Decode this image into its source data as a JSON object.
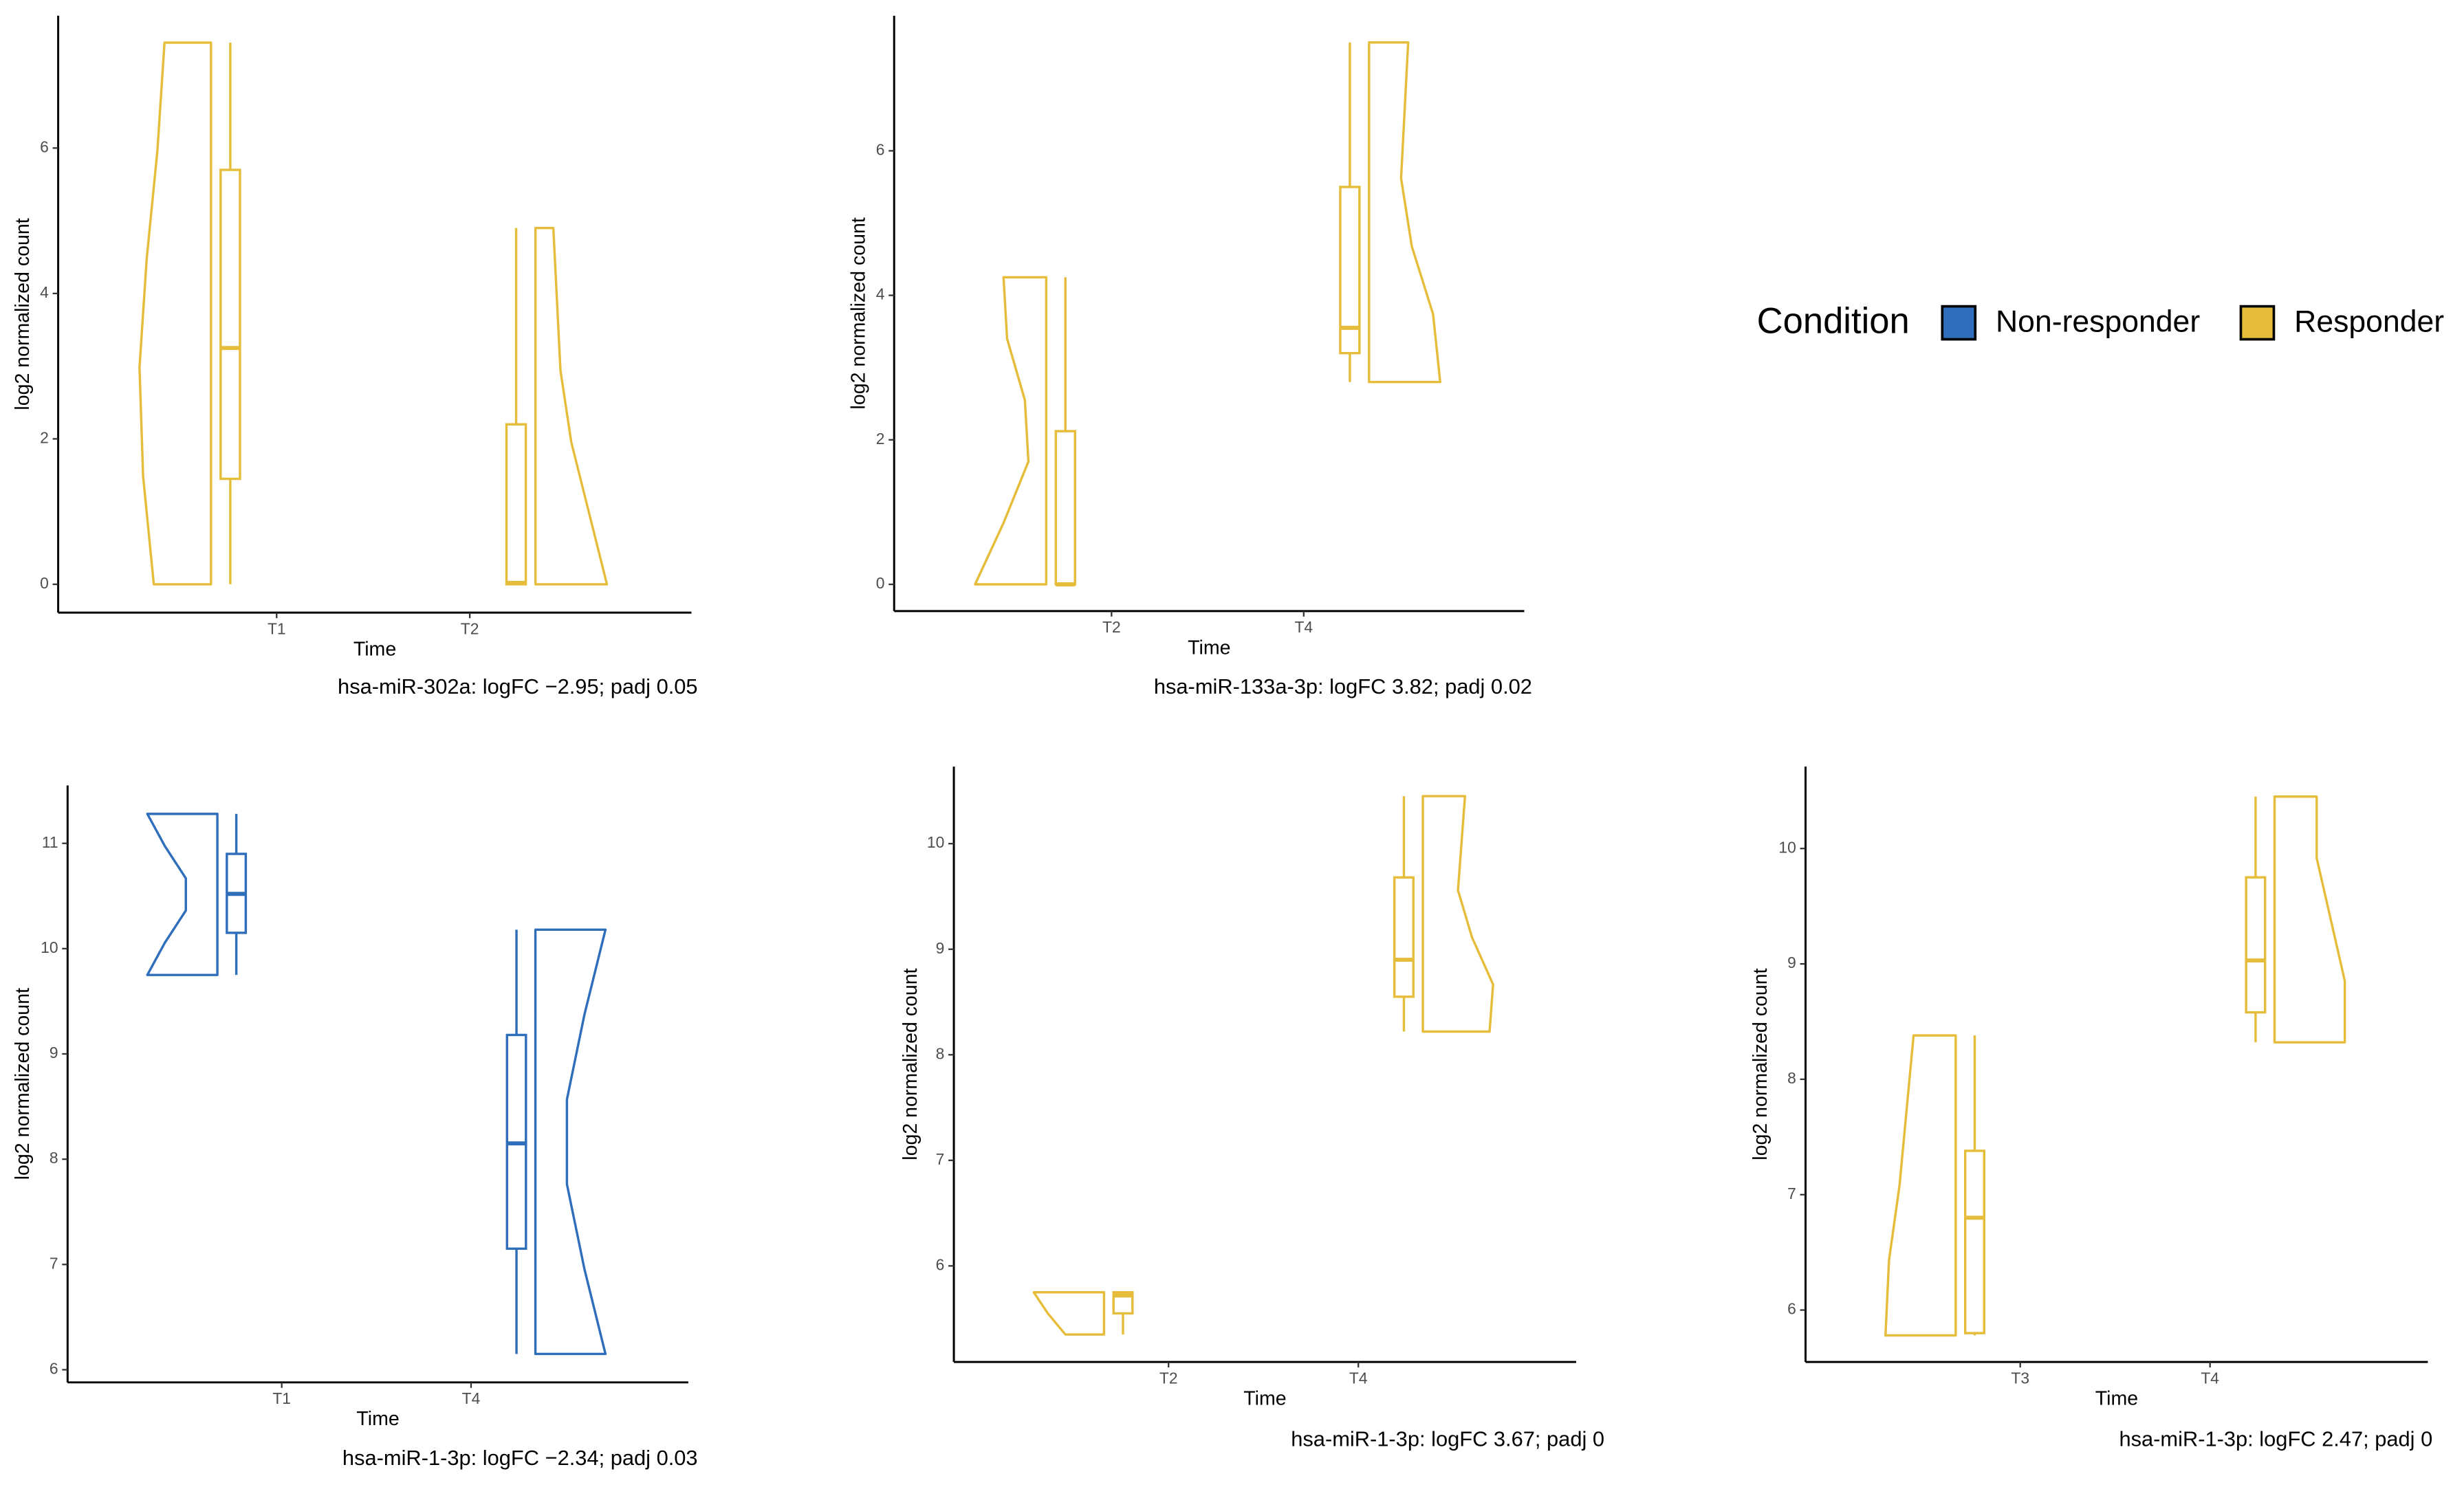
{
  "chart_data": [
    {
      "type": "violin-box",
      "caption": "hsa-miR-302a: logFC −2.95; padj 0.05",
      "xlabel": "Time",
      "ylabel": "log2 normalized count",
      "color": "#E5BD3B",
      "categories": [
        "T1",
        "T2"
      ],
      "ylim": [
        -0.39,
        7.82
      ],
      "yticks": [
        0,
        2,
        4,
        6
      ],
      "boxes": [
        {
          "min": 0,
          "q1": 1.45,
          "median": 3.25,
          "q3": 5.7,
          "max": 7.45,
          "density": [
            0.8,
            0.95,
            1.0,
            0.9,
            0.75,
            0.65
          ]
        },
        {
          "min": 0,
          "q1": 0,
          "median": 0.02,
          "q3": 2.2,
          "max": 4.9,
          "density": [
            1.0,
            0.75,
            0.5,
            0.35,
            0.3,
            0.25
          ]
        }
      ]
    },
    {
      "type": "violin-box",
      "caption": "hsa-miR-133a-3p: logFC 3.82; padj 0.02",
      "xlabel": "Time",
      "ylabel": "log2 normalized count",
      "color": "#E5BD3B",
      "categories": [
        "T2",
        "T4"
      ],
      "ylim": [
        -0.37,
        7.87
      ],
      "yticks": [
        0,
        2,
        4,
        6
      ],
      "boxes": [
        {
          "min": 0,
          "q1": 0,
          "median": 0,
          "q3": 2.12,
          "max": 4.25,
          "density": [
            1.0,
            0.6,
            0.25,
            0.3,
            0.55,
            0.6
          ]
        },
        {
          "min": 2.8,
          "q1": 3.2,
          "median": 3.55,
          "q3": 5.5,
          "max": 7.5,
          "density": [
            1.0,
            0.9,
            0.6,
            0.45,
            0.5,
            0.55
          ]
        }
      ]
    },
    {
      "type": "violin-box",
      "caption": "hsa-miR-1-3p: logFC −2.34; padj 0.03",
      "xlabel": "Time",
      "ylabel": "log2 normalized count",
      "color": "#2F6EBA",
      "categories": [
        "T1",
        "T4"
      ],
      "ylim": [
        5.88,
        11.55
      ],
      "yticks": [
        6,
        7,
        8,
        9,
        10,
        11
      ],
      "boxes": [
        {
          "min": 9.75,
          "q1": 10.15,
          "median": 10.52,
          "q3": 10.9,
          "max": 11.28,
          "density": [
            1.0,
            0.75,
            0.45,
            0.45,
            0.75,
            1.0
          ]
        },
        {
          "min": 6.15,
          "q1": 7.15,
          "median": 8.15,
          "q3": 9.18,
          "max": 10.18,
          "density": [
            1.0,
            0.7,
            0.45,
            0.45,
            0.7,
            1.0
          ]
        }
      ]
    },
    {
      "type": "violin-box",
      "caption": "hsa-miR-1-3p: logFC 3.67; padj 0",
      "xlabel": "Time",
      "ylabel": "log2 normalized count",
      "color": "#E5BD3B",
      "categories": [
        "T2",
        "T4"
      ],
      "ylim": [
        5.09,
        10.73
      ],
      "yticks": [
        6,
        7,
        8,
        9,
        10
      ],
      "boxes": [
        {
          "min": 5.35,
          "q1": 5.55,
          "median": 5.72,
          "q3": 5.75,
          "max": 5.75,
          "density": [
            0.55,
            0.8,
            1.0
          ]
        },
        {
          "min": 8.22,
          "q1": 8.55,
          "median": 8.9,
          "q3": 9.68,
          "max": 10.45,
          "density": [
            0.95,
            1.0,
            0.7,
            0.5,
            0.55,
            0.6
          ]
        }
      ]
    },
    {
      "type": "violin-box",
      "caption": "hsa-miR-1-3p: logFC 2.47; padj 0",
      "xlabel": "Time",
      "ylabel": "log2 normalized count",
      "color": "#E5BD3B",
      "categories": [
        "T3",
        "T4"
      ],
      "ylim": [
        5.55,
        10.71
      ],
      "yticks": [
        6,
        7,
        8,
        9,
        10
      ],
      "boxes": [
        {
          "min": 5.78,
          "q1": 5.8,
          "median": 6.8,
          "q3": 7.38,
          "max": 8.38,
          "density": [
            1.0,
            0.95,
            0.8,
            0.7,
            0.6
          ]
        },
        {
          "min": 8.32,
          "q1": 8.58,
          "median": 9.03,
          "q3": 9.75,
          "max": 10.45,
          "density": [
            1.0,
            1.0,
            0.8,
            0.6,
            0.6
          ]
        }
      ]
    }
  ],
  "legend": {
    "title": "Condition",
    "items": [
      {
        "name": "Non-responder",
        "color": "#2F6EBA"
      },
      {
        "name": "Responder",
        "color": "#E5BD3B"
      }
    ]
  }
}
